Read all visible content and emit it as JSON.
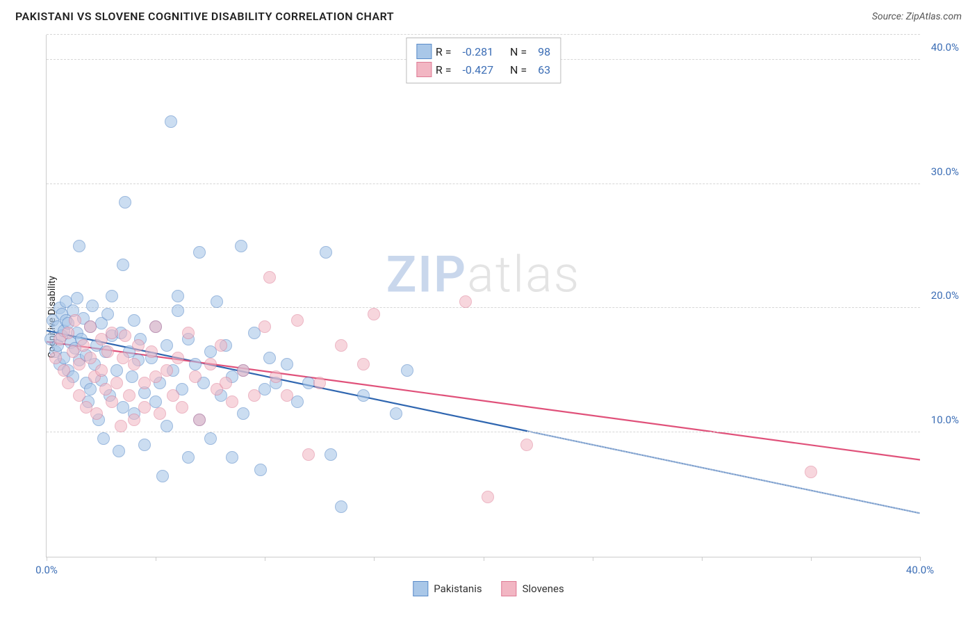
{
  "title": "PAKISTANI VS SLOVENE COGNITIVE DISABILITY CORRELATION CHART",
  "source_label": "Source: ZipAtlas.com",
  "yaxis_label": "Cognitive Disability",
  "watermark": {
    "part1": "ZIP",
    "part2": "atlas"
  },
  "chart": {
    "type": "scatter",
    "xlim": [
      0,
      40
    ],
    "ylim": [
      0,
      42
    ],
    "xticks": [
      0,
      5,
      10,
      15,
      20,
      25,
      30,
      35,
      40
    ],
    "xtick_labels": {
      "0": "0.0%",
      "40": "40.0%"
    },
    "yticks": [
      10,
      20,
      30,
      40
    ],
    "ytick_labels": [
      "10.0%",
      "20.0%",
      "30.0%",
      "40.0%"
    ],
    "yticks_grid": [
      10,
      20,
      30,
      40,
      42
    ],
    "grid_color": "#d6d6d6",
    "background_color": "#ffffff",
    "point_radius": 9
  },
  "series": [
    {
      "name": "Pakistanis",
      "fill": "#a9c7e8",
      "fill_alpha": 0.6,
      "stroke": "#5a8bc9",
      "line_color": "#2f66b0",
      "R": "-0.281",
      "N": "98",
      "trend": {
        "x1": 0,
        "y1": 18.2,
        "x2": 40,
        "y2": 3.5,
        "solid_until_x": 22
      },
      "points": [
        [
          0.2,
          17.5
        ],
        [
          0.3,
          19.0
        ],
        [
          0.4,
          16.5
        ],
        [
          0.5,
          18.5
        ],
        [
          0.5,
          17.0
        ],
        [
          0.6,
          20.0
        ],
        [
          0.6,
          15.5
        ],
        [
          0.7,
          19.5
        ],
        [
          0.7,
          17.8
        ],
        [
          0.8,
          18.2
        ],
        [
          0.8,
          16.0
        ],
        [
          0.9,
          19.0
        ],
        [
          0.9,
          20.5
        ],
        [
          1.0,
          15.0
        ],
        [
          1.0,
          18.8
        ],
        [
          1.1,
          17.2
        ],
        [
          1.2,
          19.8
        ],
        [
          1.2,
          14.5
        ],
        [
          1.3,
          16.8
        ],
        [
          1.4,
          18.0
        ],
        [
          1.4,
          20.8
        ],
        [
          1.5,
          15.8
        ],
        [
          1.5,
          25.0
        ],
        [
          1.6,
          17.5
        ],
        [
          1.7,
          19.2
        ],
        [
          1.8,
          14.0
        ],
        [
          1.8,
          16.2
        ],
        [
          1.9,
          12.5
        ],
        [
          2.0,
          18.5
        ],
        [
          2.0,
          13.5
        ],
        [
          2.1,
          20.2
        ],
        [
          2.2,
          15.5
        ],
        [
          2.3,
          17.0
        ],
        [
          2.4,
          11.0
        ],
        [
          2.5,
          18.8
        ],
        [
          2.5,
          14.2
        ],
        [
          2.6,
          9.5
        ],
        [
          2.7,
          16.5
        ],
        [
          2.8,
          19.5
        ],
        [
          2.9,
          13.0
        ],
        [
          3.0,
          17.8
        ],
        [
          3.0,
          21.0
        ],
        [
          3.2,
          15.0
        ],
        [
          3.3,
          8.5
        ],
        [
          3.4,
          18.0
        ],
        [
          3.5,
          12.0
        ],
        [
          3.5,
          23.5
        ],
        [
          3.6,
          28.5
        ],
        [
          3.8,
          16.5
        ],
        [
          3.9,
          14.5
        ],
        [
          4.0,
          19.0
        ],
        [
          4.0,
          11.5
        ],
        [
          4.2,
          15.8
        ],
        [
          4.3,
          17.5
        ],
        [
          4.5,
          9.0
        ],
        [
          4.5,
          13.2
        ],
        [
          4.8,
          16.0
        ],
        [
          5.0,
          18.5
        ],
        [
          5.0,
          12.5
        ],
        [
          5.2,
          14.0
        ],
        [
          5.3,
          6.5
        ],
        [
          5.5,
          17.0
        ],
        [
          5.5,
          10.5
        ],
        [
          5.7,
          35.0
        ],
        [
          5.8,
          15.0
        ],
        [
          6.0,
          19.8
        ],
        [
          6.0,
          21.0
        ],
        [
          6.2,
          13.5
        ],
        [
          6.5,
          17.5
        ],
        [
          6.5,
          8.0
        ],
        [
          6.8,
          15.5
        ],
        [
          7.0,
          24.5
        ],
        [
          7.0,
          11.0
        ],
        [
          7.2,
          14.0
        ],
        [
          7.5,
          16.5
        ],
        [
          7.5,
          9.5
        ],
        [
          7.8,
          20.5
        ],
        [
          8.0,
          13.0
        ],
        [
          8.2,
          17.0
        ],
        [
          8.5,
          14.5
        ],
        [
          8.5,
          8.0
        ],
        [
          8.9,
          25.0
        ],
        [
          9.0,
          11.5
        ],
        [
          9.0,
          15.0
        ],
        [
          9.5,
          18.0
        ],
        [
          9.8,
          7.0
        ],
        [
          10.0,
          13.5
        ],
        [
          10.2,
          16.0
        ],
        [
          10.5,
          14.0
        ],
        [
          11.0,
          15.5
        ],
        [
          11.5,
          12.5
        ],
        [
          12.0,
          14.0
        ],
        [
          12.8,
          24.5
        ],
        [
          13.0,
          8.2
        ],
        [
          13.5,
          4.0
        ],
        [
          14.5,
          13.0
        ],
        [
          16.0,
          11.5
        ],
        [
          16.5,
          15.0
        ]
      ]
    },
    {
      "name": "Slovenes",
      "fill": "#f2b6c3",
      "fill_alpha": 0.55,
      "stroke": "#de7b95",
      "line_color": "#e0517a",
      "R": "-0.427",
      "N": "63",
      "trend": {
        "x1": 0,
        "y1": 17.3,
        "x2": 40,
        "y2": 7.8,
        "solid_until_x": 40
      },
      "points": [
        [
          0.4,
          16.0
        ],
        [
          0.6,
          17.5
        ],
        [
          0.8,
          15.0
        ],
        [
          1.0,
          18.0
        ],
        [
          1.0,
          14.0
        ],
        [
          1.2,
          16.5
        ],
        [
          1.3,
          19.0
        ],
        [
          1.5,
          15.5
        ],
        [
          1.5,
          13.0
        ],
        [
          1.7,
          17.0
        ],
        [
          1.8,
          12.0
        ],
        [
          2.0,
          16.0
        ],
        [
          2.0,
          18.5
        ],
        [
          2.2,
          14.5
        ],
        [
          2.3,
          11.5
        ],
        [
          2.5,
          17.5
        ],
        [
          2.5,
          15.0
        ],
        [
          2.7,
          13.5
        ],
        [
          2.8,
          16.5
        ],
        [
          3.0,
          12.5
        ],
        [
          3.0,
          18.0
        ],
        [
          3.2,
          14.0
        ],
        [
          3.4,
          10.5
        ],
        [
          3.5,
          16.0
        ],
        [
          3.6,
          17.8
        ],
        [
          3.8,
          13.0
        ],
        [
          4.0,
          15.5
        ],
        [
          4.0,
          11.0
        ],
        [
          4.2,
          17.0
        ],
        [
          4.5,
          14.0
        ],
        [
          4.5,
          12.0
        ],
        [
          4.8,
          16.5
        ],
        [
          5.0,
          14.5
        ],
        [
          5.0,
          18.5
        ],
        [
          5.2,
          11.5
        ],
        [
          5.5,
          15.0
        ],
        [
          5.8,
          13.0
        ],
        [
          6.0,
          16.0
        ],
        [
          6.2,
          12.0
        ],
        [
          6.5,
          18.0
        ],
        [
          6.8,
          14.5
        ],
        [
          7.0,
          11.0
        ],
        [
          7.5,
          15.5
        ],
        [
          7.8,
          13.5
        ],
        [
          8.0,
          17.0
        ],
        [
          8.2,
          14.0
        ],
        [
          8.5,
          12.5
        ],
        [
          9.0,
          15.0
        ],
        [
          9.5,
          13.0
        ],
        [
          10.0,
          18.5
        ],
        [
          10.2,
          22.5
        ],
        [
          10.5,
          14.5
        ],
        [
          11.0,
          13.0
        ],
        [
          11.5,
          19.0
        ],
        [
          12.0,
          8.2
        ],
        [
          12.5,
          14.0
        ],
        [
          13.5,
          17.0
        ],
        [
          14.5,
          15.5
        ],
        [
          15.0,
          19.5
        ],
        [
          19.2,
          20.5
        ],
        [
          20.2,
          4.8
        ],
        [
          22.0,
          9.0
        ],
        [
          35.0,
          6.8
        ]
      ]
    }
  ],
  "legend_labels": {
    "R": "R =",
    "N": "N ="
  }
}
